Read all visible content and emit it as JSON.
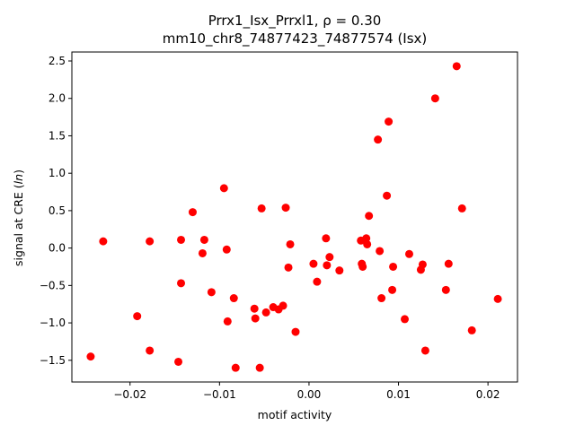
{
  "chart_data": {
    "type": "scatter",
    "title_line1": "Prrx1_Isx_Prrxl1, ρ = 0.30",
    "title_line2": "mm10_chr8_74877423_74877574 (Isx)",
    "xlabel": "motif activity",
    "ylabel": "signal at CRE (ln)",
    "xlim": [
      -0.0265,
      0.0233
    ],
    "ylim": [
      -1.79,
      2.62
    ],
    "x_ticks": [
      -0.02,
      -0.01,
      0.0,
      0.01,
      0.02
    ],
    "x_tick_labels": [
      "−0.02",
      "−0.01",
      "0.00",
      "0.01",
      "0.02"
    ],
    "y_ticks": [
      -1.5,
      -1.0,
      -0.5,
      0.0,
      0.5,
      1.0,
      1.5,
      2.0,
      2.5
    ],
    "y_tick_labels": [
      "−1.5",
      "−1.0",
      "−0.5",
      "0.0",
      "0.5",
      "1.0",
      "1.5",
      "2.0",
      "2.5"
    ],
    "grid": false,
    "marker_color": "#ff0000",
    "points": [
      {
        "x": -0.0244,
        "y": -1.45
      },
      {
        "x": -0.023,
        "y": 0.09
      },
      {
        "x": -0.0192,
        "y": -0.91
      },
      {
        "x": -0.0178,
        "y": 0.09
      },
      {
        "x": -0.0178,
        "y": -1.37
      },
      {
        "x": -0.0146,
        "y": -1.52
      },
      {
        "x": -0.0143,
        "y": 0.11
      },
      {
        "x": -0.0143,
        "y": -0.47
      },
      {
        "x": -0.013,
        "y": 0.48
      },
      {
        "x": -0.0119,
        "y": -0.07
      },
      {
        "x": -0.0117,
        "y": 0.11
      },
      {
        "x": -0.0109,
        "y": -0.59
      },
      {
        "x": -0.0095,
        "y": 0.8
      },
      {
        "x": -0.0092,
        "y": -0.02
      },
      {
        "x": -0.0091,
        "y": -0.98
      },
      {
        "x": -0.0084,
        "y": -0.67
      },
      {
        "x": -0.0082,
        "y": -1.6
      },
      {
        "x": -0.0061,
        "y": -0.81
      },
      {
        "x": -0.006,
        "y": -0.94
      },
      {
        "x": -0.0055,
        "y": -1.6
      },
      {
        "x": -0.0053,
        "y": 0.53
      },
      {
        "x": -0.0048,
        "y": -0.86
      },
      {
        "x": -0.004,
        "y": -0.79
      },
      {
        "x": -0.0034,
        "y": -0.82
      },
      {
        "x": -0.0029,
        "y": -0.77
      },
      {
        "x": -0.0026,
        "y": 0.54
      },
      {
        "x": -0.0023,
        "y": -0.26
      },
      {
        "x": -0.0021,
        "y": 0.05
      },
      {
        "x": -0.0015,
        "y": -1.12
      },
      {
        "x": 0.0005,
        "y": -0.21
      },
      {
        "x": 0.0009,
        "y": -0.45
      },
      {
        "x": 0.0019,
        "y": 0.13
      },
      {
        "x": 0.002,
        "y": -0.23
      },
      {
        "x": 0.0023,
        "y": -0.12
      },
      {
        "x": 0.0034,
        "y": -0.3
      },
      {
        "x": 0.0058,
        "y": 0.1
      },
      {
        "x": 0.0059,
        "y": -0.21
      },
      {
        "x": 0.006,
        "y": -0.25
      },
      {
        "x": 0.0064,
        "y": 0.13
      },
      {
        "x": 0.0065,
        "y": 0.05
      },
      {
        "x": 0.0067,
        "y": 0.43
      },
      {
        "x": 0.0077,
        "y": 1.45
      },
      {
        "x": 0.0079,
        "y": -0.04
      },
      {
        "x": 0.0081,
        "y": -0.67
      },
      {
        "x": 0.0087,
        "y": 0.7
      },
      {
        "x": 0.0089,
        "y": 1.69
      },
      {
        "x": 0.0093,
        "y": -0.56
      },
      {
        "x": 0.0094,
        "y": -0.25
      },
      {
        "x": 0.0107,
        "y": -0.95
      },
      {
        "x": 0.0112,
        "y": -0.08
      },
      {
        "x": 0.0125,
        "y": -0.29
      },
      {
        "x": 0.0127,
        "y": -0.22
      },
      {
        "x": 0.013,
        "y": -1.37
      },
      {
        "x": 0.0141,
        "y": 2.0
      },
      {
        "x": 0.0153,
        "y": -0.56
      },
      {
        "x": 0.0156,
        "y": -0.21
      },
      {
        "x": 0.0165,
        "y": 2.43
      },
      {
        "x": 0.0171,
        "y": 0.53
      },
      {
        "x": 0.0182,
        "y": -1.1
      },
      {
        "x": 0.0211,
        "y": -0.68
      }
    ]
  }
}
